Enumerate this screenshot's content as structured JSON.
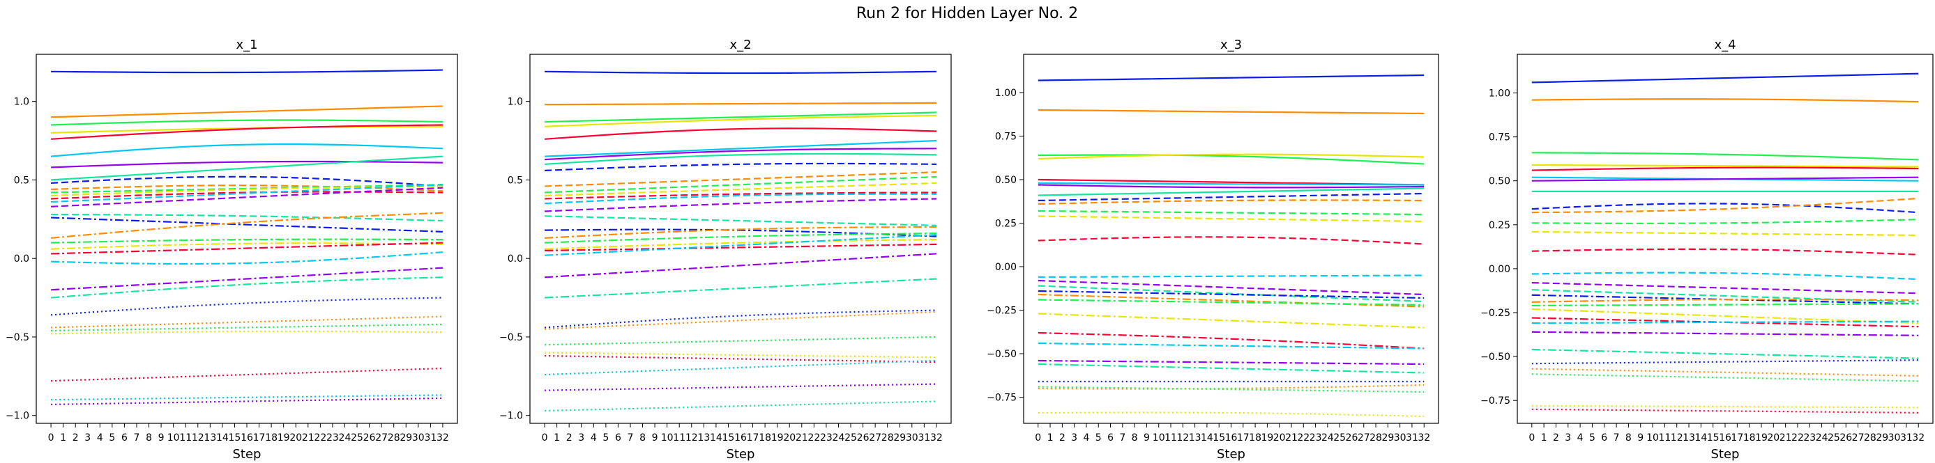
{
  "figure_title": "Run 2 for Hidden Layer No. 2",
  "colors": [
    "#0a1ee6",
    "#ff8c00",
    "#1ef050",
    "#e6e600",
    "#ff0033",
    "#00c8f0",
    "#9400f0",
    "#14e6a0"
  ],
  "line_styles": [
    "solid",
    "dashed",
    "dashdot",
    "dotted"
  ],
  "chart_data": [
    {
      "type": "line",
      "title": "x_1",
      "xlabel": "Step",
      "ylabel": "",
      "x": [
        0,
        1,
        2,
        3,
        4,
        5,
        6,
        7,
        8,
        9,
        10,
        11,
        12,
        13,
        14,
        15,
        16,
        17,
        18,
        19,
        20,
        21,
        22,
        23,
        24,
        25,
        26,
        27,
        28,
        29,
        30,
        31,
        32
      ],
      "x_tick_labels": [
        "0",
        "1",
        "2",
        "3",
        "4",
        "5",
        "6",
        "7",
        "8",
        "9",
        "10",
        "11",
        "12",
        "13",
        "14",
        "15",
        "16",
        "17",
        "18",
        "19",
        "20",
        "21",
        "22",
        "23",
        "24",
        "25",
        "26",
        "27",
        "28",
        "29",
        "30",
        "31",
        "32"
      ],
      "ylim": [
        -1.05,
        1.3
      ],
      "y_ticks": [
        -1.0,
        -0.5,
        0.0,
        0.5,
        1.0
      ],
      "y_tick_labels": [
        "−1.0",
        "−0.5",
        "0.0",
        "0.5",
        "1.0"
      ],
      "grid": false,
      "series_profiles": [
        {
          "start": 1.19,
          "end": 1.2,
          "bump": -0.01
        },
        {
          "start": 0.9,
          "end": 0.97,
          "bump": 0.0
        },
        {
          "start": 0.85,
          "end": 0.87,
          "bump": 0.02
        },
        {
          "start": 0.8,
          "end": 0.84,
          "bump": 0.01
        },
        {
          "start": 0.76,
          "end": 0.85,
          "bump": 0.02
        },
        {
          "start": 0.65,
          "end": 0.7,
          "bump": 0.05
        },
        {
          "start": 0.58,
          "end": 0.61,
          "bump": 0.02
        },
        {
          "start": 0.5,
          "end": 0.65,
          "bump": 0.0
        },
        {
          "start": 0.48,
          "end": 0.46,
          "bump": 0.05
        },
        {
          "start": 0.44,
          "end": 0.43,
          "bump": 0.03
        },
        {
          "start": 0.42,
          "end": 0.47,
          "bump": 0.0
        },
        {
          "start": 0.4,
          "end": 0.46,
          "bump": 0.01
        },
        {
          "start": 0.38,
          "end": 0.42,
          "bump": 0.02
        },
        {
          "start": 0.36,
          "end": 0.47,
          "bump": 0.0
        },
        {
          "start": 0.33,
          "end": 0.45,
          "bump": 0.0
        },
        {
          "start": 0.28,
          "end": 0.24,
          "bump": 0.01
        },
        {
          "start": 0.26,
          "end": 0.17,
          "bump": 0.0
        },
        {
          "start": 0.13,
          "end": 0.29,
          "bump": 0.02
        },
        {
          "start": 0.1,
          "end": 0.12,
          "bump": 0.01
        },
        {
          "start": 0.06,
          "end": 0.09,
          "bump": 0.02
        },
        {
          "start": 0.03,
          "end": 0.1,
          "bump": 0.0
        },
        {
          "start": -0.02,
          "end": 0.04,
          "bump": -0.04
        },
        {
          "start": -0.2,
          "end": -0.06,
          "bump": 0.0
        },
        {
          "start": -0.25,
          "end": -0.12,
          "bump": 0.02
        },
        {
          "start": -0.36,
          "end": -0.25,
          "bump": 0.02
        },
        {
          "start": -0.44,
          "end": -0.37,
          "bump": 0.0
        },
        {
          "start": -0.46,
          "end": -0.42,
          "bump": 0.0
        },
        {
          "start": -0.48,
          "end": -0.47,
          "bump": 0.01
        },
        {
          "start": -0.78,
          "end": -0.7,
          "bump": 0.0
        },
        {
          "start": -0.9,
          "end": -0.87,
          "bump": 0.0
        },
        {
          "start": -0.93,
          "end": -0.89,
          "bump": 0.0
        }
      ]
    },
    {
      "type": "line",
      "title": "x_2",
      "xlabel": "Step",
      "ylabel": "",
      "x": [
        0,
        1,
        2,
        3,
        4,
        5,
        6,
        7,
        8,
        9,
        10,
        11,
        12,
        13,
        14,
        15,
        16,
        17,
        18,
        19,
        20,
        21,
        22,
        23,
        24,
        25,
        26,
        27,
        28,
        29,
        30,
        31,
        32
      ],
      "x_tick_labels": [
        "0",
        "1",
        "2",
        "3",
        "4",
        "5",
        "6",
        "7",
        "8",
        "9",
        "10",
        "11",
        "12",
        "13",
        "14",
        "15",
        "16",
        "17",
        "18",
        "19",
        "20",
        "21",
        "22",
        "23",
        "24",
        "25",
        "26",
        "27",
        "28",
        "29",
        "30",
        "31",
        "32"
      ],
      "ylim": [
        -1.05,
        1.3
      ],
      "y_ticks": [
        -1.0,
        -0.5,
        0.0,
        0.5,
        1.0
      ],
      "y_tick_labels": [
        "−1.0",
        "−0.5",
        "0.0",
        "0.5",
        "1.0"
      ],
      "grid": false,
      "series_profiles": [
        {
          "start": 1.19,
          "end": 1.19,
          "bump": -0.01
        },
        {
          "start": 0.98,
          "end": 0.99,
          "bump": 0.0
        },
        {
          "start": 0.87,
          "end": 0.93,
          "bump": 0.0
        },
        {
          "start": 0.84,
          "end": 0.91,
          "bump": 0.01
        },
        {
          "start": 0.76,
          "end": 0.81,
          "bump": 0.04
        },
        {
          "start": 0.65,
          "end": 0.75,
          "bump": 0.0
        },
        {
          "start": 0.63,
          "end": 0.7,
          "bump": 0.02
        },
        {
          "start": 0.6,
          "end": 0.66,
          "bump": 0.03
        },
        {
          "start": 0.56,
          "end": 0.6,
          "bump": 0.02
        },
        {
          "start": 0.46,
          "end": 0.55,
          "bump": 0.0
        },
        {
          "start": 0.42,
          "end": 0.52,
          "bump": 0.0
        },
        {
          "start": 0.4,
          "end": 0.48,
          "bump": 0.0
        },
        {
          "start": 0.38,
          "end": 0.42,
          "bump": 0.01
        },
        {
          "start": 0.35,
          "end": 0.41,
          "bump": 0.02
        },
        {
          "start": 0.3,
          "end": 0.38,
          "bump": 0.01
        },
        {
          "start": 0.27,
          "end": 0.21,
          "bump": 0.0
        },
        {
          "start": 0.18,
          "end": 0.14,
          "bump": 0.02
        },
        {
          "start": 0.13,
          "end": 0.2,
          "bump": 0.02
        },
        {
          "start": 0.1,
          "end": 0.16,
          "bump": 0.01
        },
        {
          "start": 0.06,
          "end": 0.12,
          "bump": 0.01
        },
        {
          "start": 0.05,
          "end": 0.09,
          "bump": 0.0
        },
        {
          "start": 0.02,
          "end": 0.15,
          "bump": 0.0
        },
        {
          "start": -0.12,
          "end": 0.03,
          "bump": 0.0
        },
        {
          "start": -0.25,
          "end": -0.13,
          "bump": 0.0
        },
        {
          "start": -0.44,
          "end": -0.33,
          "bump": 0.02
        },
        {
          "start": -0.45,
          "end": -0.34,
          "bump": 0.0
        },
        {
          "start": -0.55,
          "end": -0.5,
          "bump": 0.0
        },
        {
          "start": -0.6,
          "end": -0.63,
          "bump": 0.0
        },
        {
          "start": -0.62,
          "end": -0.66,
          "bump": 0.0
        },
        {
          "start": -0.74,
          "end": -0.65,
          "bump": 0.0
        },
        {
          "start": -0.84,
          "end": -0.8,
          "bump": 0.0
        },
        {
          "start": -0.97,
          "end": -0.91,
          "bump": 0.0
        }
      ]
    },
    {
      "type": "line",
      "title": "x_3",
      "xlabel": "Step",
      "ylabel": "",
      "x": [
        0,
        1,
        2,
        3,
        4,
        5,
        6,
        7,
        8,
        9,
        10,
        11,
        12,
        13,
        14,
        15,
        16,
        17,
        18,
        19,
        20,
        21,
        22,
        23,
        24,
        25,
        26,
        27,
        28,
        29,
        30,
        31,
        32
      ],
      "x_tick_labels": [
        "0",
        "1",
        "2",
        "3",
        "4",
        "5",
        "6",
        "7",
        "8",
        "9",
        "10",
        "11",
        "12",
        "13",
        "14",
        "15",
        "16",
        "17",
        "18",
        "19",
        "20",
        "21",
        "22",
        "23",
        "24",
        "25",
        "26",
        "27",
        "28",
        "29",
        "30",
        "31",
        "32"
      ],
      "ylim": [
        -0.9,
        1.22
      ],
      "y_ticks": [
        -0.75,
        -0.5,
        -0.25,
        0.0,
        0.25,
        0.5,
        0.75,
        1.0
      ],
      "y_tick_labels": [
        "−0.75",
        "−0.50",
        "−0.25",
        "0.00",
        "0.25",
        "0.50",
        "0.75",
        "1.00"
      ],
      "grid": false,
      "series_profiles": [
        {
          "start": 1.07,
          "end": 1.1,
          "bump": 0.0
        },
        {
          "start": 0.9,
          "end": 0.88,
          "bump": 0.0
        },
        {
          "start": 0.64,
          "end": 0.59,
          "bump": 0.02
        },
        {
          "start": 0.62,
          "end": 0.63,
          "bump": 0.02
        },
        {
          "start": 0.5,
          "end": 0.47,
          "bump": 0.0
        },
        {
          "start": 0.48,
          "end": 0.47,
          "bump": 0.0
        },
        {
          "start": 0.47,
          "end": 0.46,
          "bump": -0.01
        },
        {
          "start": 0.41,
          "end": 0.45,
          "bump": 0.0
        },
        {
          "start": 0.38,
          "end": 0.42,
          "bump": 0.0
        },
        {
          "start": 0.36,
          "end": 0.38,
          "bump": 0.01
        },
        {
          "start": 0.32,
          "end": 0.3,
          "bump": 0.0
        },
        {
          "start": 0.29,
          "end": 0.26,
          "bump": 0.0
        },
        {
          "start": 0.15,
          "end": 0.13,
          "bump": 0.03
        },
        {
          "start": -0.06,
          "end": -0.05,
          "bump": 0.0
        },
        {
          "start": -0.08,
          "end": -0.16,
          "bump": 0.0
        },
        {
          "start": -0.11,
          "end": -0.2,
          "bump": 0.0
        },
        {
          "start": -0.14,
          "end": -0.18,
          "bump": 0.0
        },
        {
          "start": -0.16,
          "end": -0.23,
          "bump": 0.0
        },
        {
          "start": -0.19,
          "end": -0.22,
          "bump": 0.0
        },
        {
          "start": -0.27,
          "end": -0.35,
          "bump": 0.0
        },
        {
          "start": -0.38,
          "end": -0.47,
          "bump": 0.01
        },
        {
          "start": -0.44,
          "end": -0.47,
          "bump": 0.0
        },
        {
          "start": -0.54,
          "end": -0.56,
          "bump": 0.0
        },
        {
          "start": -0.56,
          "end": -0.61,
          "bump": 0.0
        },
        {
          "start": -0.66,
          "end": -0.66,
          "bump": 0.0
        },
        {
          "start": -0.7,
          "end": -0.68,
          "bump": -0.01
        },
        {
          "start": -0.69,
          "end": -0.72,
          "bump": 0.0
        },
        {
          "start": -0.84,
          "end": -0.86,
          "bump": 0.01
        }
      ]
    },
    {
      "type": "line",
      "title": "x_4",
      "xlabel": "Step",
      "ylabel": "",
      "x": [
        0,
        1,
        2,
        3,
        4,
        5,
        6,
        7,
        8,
        9,
        10,
        11,
        12,
        13,
        14,
        15,
        16,
        17,
        18,
        19,
        20,
        21,
        22,
        23,
        24,
        25,
        26,
        27,
        28,
        29,
        30,
        31,
        32
      ],
      "x_tick_labels": [
        "0",
        "1",
        "2",
        "3",
        "4",
        "5",
        "6",
        "7",
        "8",
        "9",
        "10",
        "11",
        "12",
        "13",
        "14",
        "15",
        "16",
        "17",
        "18",
        "19",
        "20",
        "21",
        "22",
        "23",
        "24",
        "25",
        "26",
        "27",
        "28",
        "29",
        "30",
        "31",
        "32"
      ],
      "ylim": [
        -0.88,
        1.22
      ],
      "y_ticks": [
        -0.75,
        -0.5,
        -0.25,
        0.0,
        0.25,
        0.5,
        0.75,
        1.0
      ],
      "y_tick_labels": [
        "−0.75",
        "−0.50",
        "−0.25",
        "0.00",
        "0.25",
        "0.50",
        "0.75",
        "1.00"
      ],
      "grid": false,
      "series_profiles": [
        {
          "start": 1.06,
          "end": 1.11,
          "bump": 0.0
        },
        {
          "start": 0.96,
          "end": 0.95,
          "bump": 0.01
        },
        {
          "start": 0.66,
          "end": 0.62,
          "bump": 0.01
        },
        {
          "start": 0.59,
          "end": 0.58,
          "bump": 0.0
        },
        {
          "start": 0.56,
          "end": 0.57,
          "bump": 0.01
        },
        {
          "start": 0.52,
          "end": 0.5,
          "bump": 0.0
        },
        {
          "start": 0.5,
          "end": 0.52,
          "bump": 0.0
        },
        {
          "start": 0.44,
          "end": 0.44,
          "bump": 0.0
        },
        {
          "start": 0.34,
          "end": 0.32,
          "bump": 0.04
        },
        {
          "start": 0.32,
          "end": 0.4,
          "bump": -0.02
        },
        {
          "start": 0.26,
          "end": 0.28,
          "bump": -0.01
        },
        {
          "start": 0.21,
          "end": 0.19,
          "bump": 0.0
        },
        {
          "start": 0.1,
          "end": 0.08,
          "bump": 0.02
        },
        {
          "start": -0.03,
          "end": -0.06,
          "bump": 0.02
        },
        {
          "start": -0.08,
          "end": -0.14,
          "bump": 0.0
        },
        {
          "start": -0.12,
          "end": -0.19,
          "bump": 0.0
        },
        {
          "start": -0.15,
          "end": -0.2,
          "bump": 0.0
        },
        {
          "start": -0.19,
          "end": -0.18,
          "bump": 0.01
        },
        {
          "start": -0.21,
          "end": -0.2,
          "bump": 0.0
        },
        {
          "start": -0.23,
          "end": -0.31,
          "bump": 0.0
        },
        {
          "start": -0.28,
          "end": -0.33,
          "bump": 0.0
        },
        {
          "start": -0.31,
          "end": -0.3,
          "bump": 0.0
        },
        {
          "start": -0.36,
          "end": -0.38,
          "bump": 0.0
        },
        {
          "start": -0.46,
          "end": -0.51,
          "bump": 0.0
        },
        {
          "start": -0.54,
          "end": -0.52,
          "bump": 0.0
        },
        {
          "start": -0.57,
          "end": -0.61,
          "bump": 0.0
        },
        {
          "start": -0.6,
          "end": -0.64,
          "bump": 0.0
        },
        {
          "start": -0.78,
          "end": -0.79,
          "bump": 0.0
        },
        {
          "start": -0.8,
          "end": -0.82,
          "bump": 0.0
        }
      ]
    }
  ]
}
